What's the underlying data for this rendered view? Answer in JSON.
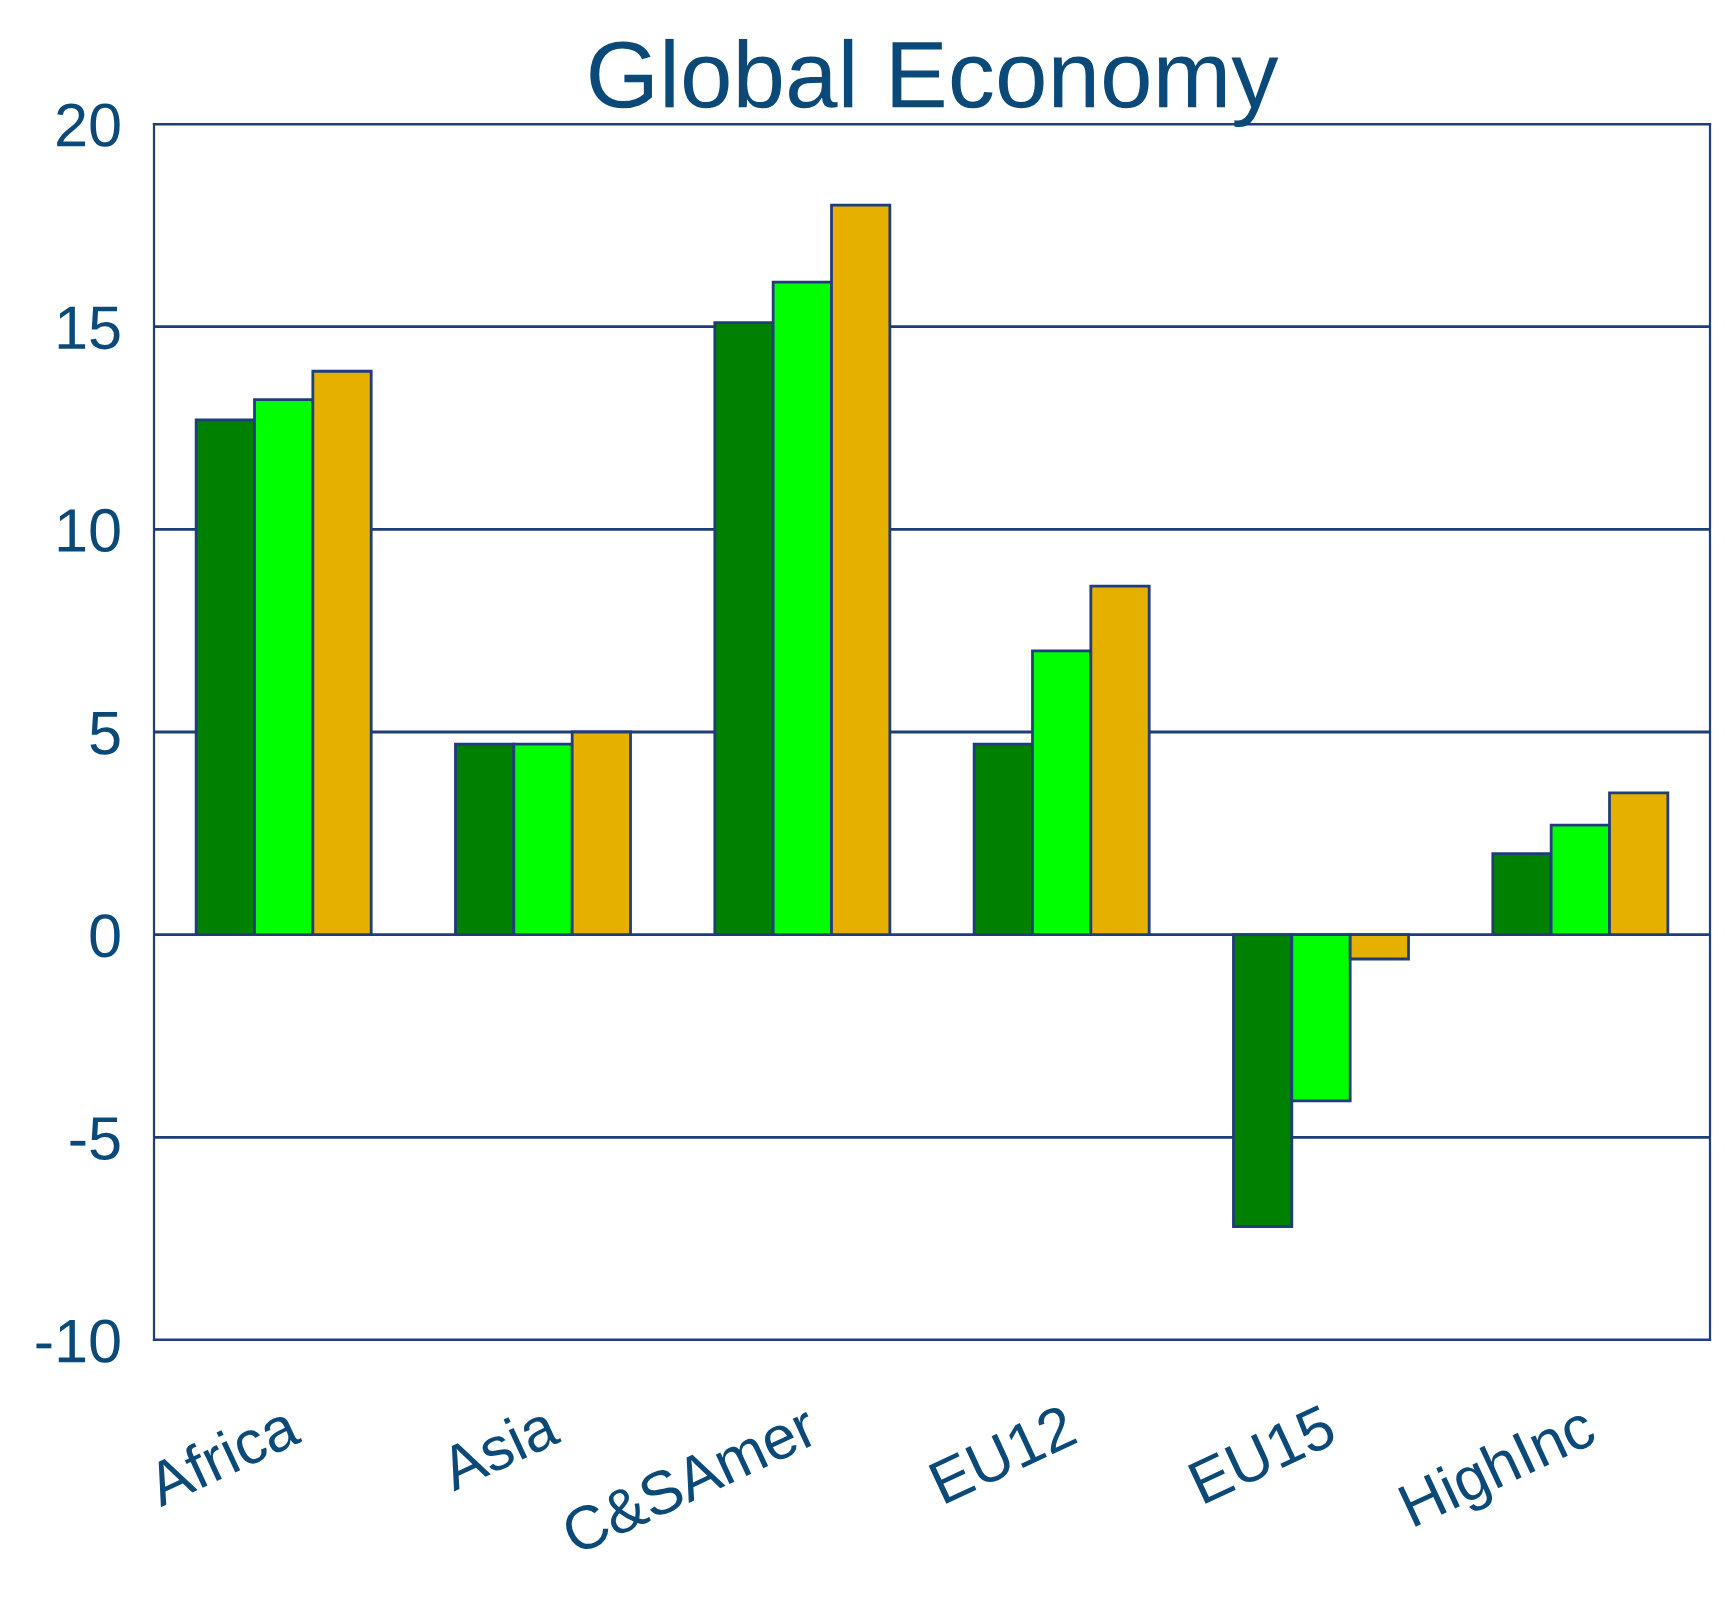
{
  "chart_data": {
    "type": "bar",
    "title": "Global Economy",
    "categories": [
      "Africa",
      "Asia",
      "C&SAmer",
      "EU12",
      "EU15",
      "HighInc"
    ],
    "series": [
      {
        "color": "#008000",
        "values": [
          12.7,
          4.7,
          15.1,
          4.7,
          -7.2,
          2.0
        ]
      },
      {
        "color": "#00ff00",
        "values": [
          13.2,
          4.7,
          16.1,
          7.0,
          -4.1,
          2.7
        ]
      },
      {
        "color": "#e6b000",
        "values": [
          13.9,
          5.0,
          18.0,
          8.6,
          -0.6,
          3.5
        ]
      }
    ],
    "ylim": [
      -10,
      20
    ],
    "yticks": [
      -10,
      -5,
      0,
      5,
      10,
      15,
      20
    ],
    "grid": "y"
  }
}
